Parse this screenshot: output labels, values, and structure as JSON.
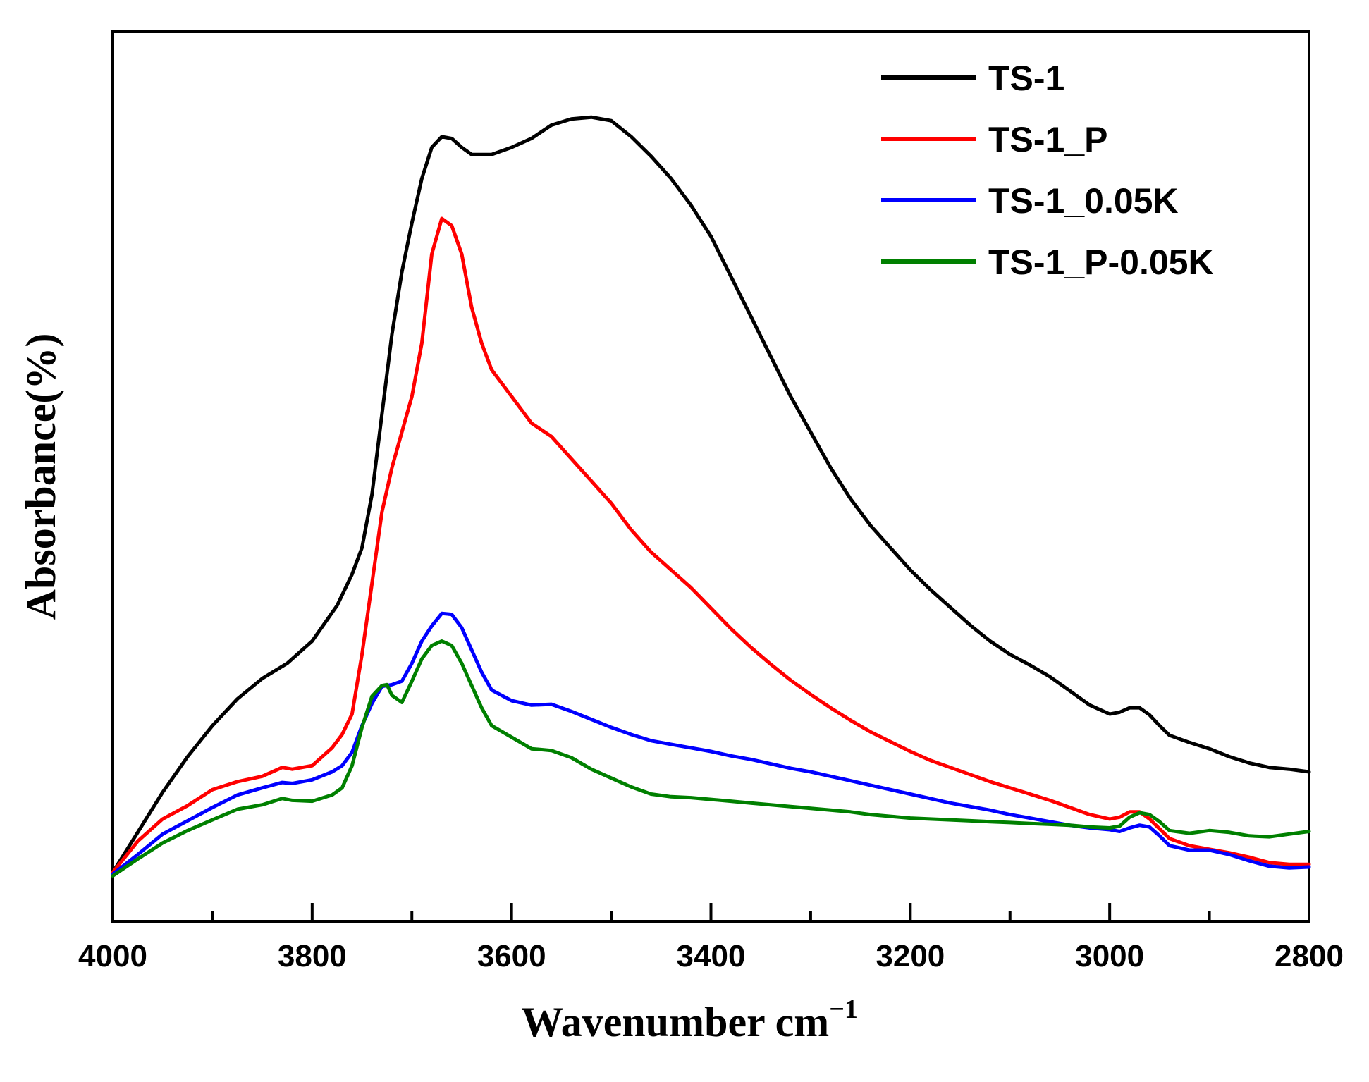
{
  "chart_data": {
    "type": "line",
    "title": "",
    "xlabel": "Wavenumber cm",
    "xlabel_superscript": "−1",
    "ylabel": "Absorbance(%)",
    "xlim": [
      4000,
      2800
    ],
    "ylim": [
      0,
      100
    ],
    "x_reversed": true,
    "xticks": [
      4000,
      3800,
      3600,
      3400,
      3200,
      3000,
      2800
    ],
    "y_ticks_shown": false,
    "grid": false,
    "legend_position": "top-right",
    "series": [
      {
        "name": "TS-1",
        "color": "#000000",
        "points": [
          [
            4000,
            5.5
          ],
          [
            3975,
            10
          ],
          [
            3950,
            14.5
          ],
          [
            3925,
            18.5
          ],
          [
            3900,
            22
          ],
          [
            3875,
            25
          ],
          [
            3850,
            27.3
          ],
          [
            3825,
            29
          ],
          [
            3800,
            31.5
          ],
          [
            3775,
            35.5
          ],
          [
            3760,
            39
          ],
          [
            3750,
            42
          ],
          [
            3740,
            48
          ],
          [
            3730,
            57
          ],
          [
            3720,
            66
          ],
          [
            3710,
            73
          ],
          [
            3700,
            78.5
          ],
          [
            3690,
            83.5
          ],
          [
            3680,
            87
          ],
          [
            3670,
            88.2
          ],
          [
            3660,
            88
          ],
          [
            3650,
            87
          ],
          [
            3640,
            86.2
          ],
          [
            3620,
            86.2
          ],
          [
            3600,
            87
          ],
          [
            3580,
            88
          ],
          [
            3560,
            89.5
          ],
          [
            3540,
            90.2
          ],
          [
            3520,
            90.4
          ],
          [
            3500,
            90
          ],
          [
            3480,
            88.2
          ],
          [
            3460,
            86
          ],
          [
            3440,
            83.5
          ],
          [
            3420,
            80.5
          ],
          [
            3400,
            77
          ],
          [
            3380,
            72.5
          ],
          [
            3360,
            68
          ],
          [
            3340,
            63.5
          ],
          [
            3320,
            59
          ],
          [
            3300,
            55
          ],
          [
            3280,
            51
          ],
          [
            3260,
            47.5
          ],
          [
            3240,
            44.5
          ],
          [
            3220,
            42
          ],
          [
            3200,
            39.5
          ],
          [
            3180,
            37.3
          ],
          [
            3160,
            35.3
          ],
          [
            3140,
            33.3
          ],
          [
            3120,
            31.5
          ],
          [
            3100,
            30
          ],
          [
            3080,
            28.8
          ],
          [
            3060,
            27.5
          ],
          [
            3040,
            25.9
          ],
          [
            3020,
            24.3
          ],
          [
            3000,
            23.3
          ],
          [
            2990,
            23.5
          ],
          [
            2980,
            24
          ],
          [
            2970,
            24
          ],
          [
            2960,
            23.2
          ],
          [
            2950,
            22
          ],
          [
            2940,
            20.9
          ],
          [
            2920,
            20.1
          ],
          [
            2900,
            19.4
          ],
          [
            2880,
            18.5
          ],
          [
            2860,
            17.8
          ],
          [
            2840,
            17.3
          ],
          [
            2820,
            17.1
          ],
          [
            2800,
            16.8
          ]
        ]
      },
      {
        "name": "TS-1_P",
        "color": "#ff0000",
        "points": [
          [
            4000,
            5.5
          ],
          [
            3975,
            9
          ],
          [
            3950,
            11.5
          ],
          [
            3925,
            13
          ],
          [
            3900,
            14.8
          ],
          [
            3875,
            15.7
          ],
          [
            3850,
            16.3
          ],
          [
            3830,
            17.3
          ],
          [
            3820,
            17.1
          ],
          [
            3800,
            17.5
          ],
          [
            3780,
            19.5
          ],
          [
            3770,
            21
          ],
          [
            3760,
            23.3
          ],
          [
            3750,
            30
          ],
          [
            3740,
            38
          ],
          [
            3730,
            46
          ],
          [
            3720,
            51
          ],
          [
            3710,
            55
          ],
          [
            3700,
            59
          ],
          [
            3690,
            65
          ],
          [
            3680,
            75
          ],
          [
            3670,
            79
          ],
          [
            3660,
            78.2
          ],
          [
            3650,
            75
          ],
          [
            3640,
            69
          ],
          [
            3630,
            65
          ],
          [
            3620,
            62
          ],
          [
            3600,
            59
          ],
          [
            3580,
            56
          ],
          [
            3560,
            54.5
          ],
          [
            3540,
            52
          ],
          [
            3520,
            49.5
          ],
          [
            3500,
            47
          ],
          [
            3480,
            44
          ],
          [
            3460,
            41.5
          ],
          [
            3440,
            39.5
          ],
          [
            3420,
            37.5
          ],
          [
            3400,
            35.2
          ],
          [
            3380,
            32.9
          ],
          [
            3360,
            30.8
          ],
          [
            3340,
            28.9
          ],
          [
            3320,
            27.1
          ],
          [
            3300,
            25.5
          ],
          [
            3280,
            24
          ],
          [
            3260,
            22.6
          ],
          [
            3240,
            21.3
          ],
          [
            3220,
            20.2
          ],
          [
            3200,
            19.1
          ],
          [
            3180,
            18.1
          ],
          [
            3160,
            17.3
          ],
          [
            3140,
            16.5
          ],
          [
            3120,
            15.7
          ],
          [
            3100,
            15
          ],
          [
            3080,
            14.3
          ],
          [
            3060,
            13.6
          ],
          [
            3040,
            12.8
          ],
          [
            3020,
            12
          ],
          [
            3000,
            11.5
          ],
          [
            2990,
            11.7
          ],
          [
            2980,
            12.3
          ],
          [
            2970,
            12.3
          ],
          [
            2960,
            11.5
          ],
          [
            2950,
            10.4
          ],
          [
            2940,
            9.3
          ],
          [
            2920,
            8.5
          ],
          [
            2900,
            8.1
          ],
          [
            2880,
            7.7
          ],
          [
            2860,
            7.2
          ],
          [
            2840,
            6.6
          ],
          [
            2820,
            6.4
          ],
          [
            2800,
            6.4
          ]
        ]
      },
      {
        "name": "TS-1_0.05K",
        "color": "#0000ff",
        "points": [
          [
            4000,
            5.3
          ],
          [
            3975,
            7.5
          ],
          [
            3950,
            9.8
          ],
          [
            3925,
            11.3
          ],
          [
            3900,
            12.8
          ],
          [
            3875,
            14.2
          ],
          [
            3850,
            15
          ],
          [
            3830,
            15.6
          ],
          [
            3820,
            15.5
          ],
          [
            3800,
            15.9
          ],
          [
            3780,
            16.8
          ],
          [
            3770,
            17.5
          ],
          [
            3760,
            19
          ],
          [
            3750,
            22
          ],
          [
            3740,
            24.5
          ],
          [
            3730,
            26.4
          ],
          [
            3720,
            26.6
          ],
          [
            3710,
            27
          ],
          [
            3700,
            29
          ],
          [
            3690,
            31.5
          ],
          [
            3680,
            33.2
          ],
          [
            3670,
            34.6
          ],
          [
            3660,
            34.5
          ],
          [
            3650,
            33
          ],
          [
            3640,
            30.5
          ],
          [
            3630,
            28
          ],
          [
            3620,
            26
          ],
          [
            3600,
            24.8
          ],
          [
            3580,
            24.3
          ],
          [
            3560,
            24.4
          ],
          [
            3540,
            23.6
          ],
          [
            3520,
            22.7
          ],
          [
            3500,
            21.8
          ],
          [
            3480,
            21
          ],
          [
            3460,
            20.3
          ],
          [
            3440,
            19.9
          ],
          [
            3420,
            19.5
          ],
          [
            3400,
            19.1
          ],
          [
            3380,
            18.6
          ],
          [
            3360,
            18.2
          ],
          [
            3340,
            17.7
          ],
          [
            3320,
            17.2
          ],
          [
            3300,
            16.8
          ],
          [
            3280,
            16.3
          ],
          [
            3260,
            15.8
          ],
          [
            3240,
            15.3
          ],
          [
            3220,
            14.8
          ],
          [
            3200,
            14.3
          ],
          [
            3180,
            13.8
          ],
          [
            3160,
            13.3
          ],
          [
            3140,
            12.9
          ],
          [
            3120,
            12.5
          ],
          [
            3100,
            12
          ],
          [
            3080,
            11.6
          ],
          [
            3060,
            11.2
          ],
          [
            3040,
            10.8
          ],
          [
            3020,
            10.5
          ],
          [
            3000,
            10.3
          ],
          [
            2990,
            10.1
          ],
          [
            2980,
            10.5
          ],
          [
            2970,
            10.8
          ],
          [
            2960,
            10.6
          ],
          [
            2950,
            9.6
          ],
          [
            2940,
            8.5
          ],
          [
            2920,
            8
          ],
          [
            2900,
            8
          ],
          [
            2880,
            7.5
          ],
          [
            2860,
            6.8
          ],
          [
            2840,
            6.2
          ],
          [
            2820,
            6
          ],
          [
            2800,
            6.1
          ]
        ]
      },
      {
        "name": "TS-1_P-0.05K",
        "color": "#008000",
        "points": [
          [
            4000,
            5.1
          ],
          [
            3975,
            7
          ],
          [
            3950,
            8.8
          ],
          [
            3925,
            10.2
          ],
          [
            3900,
            11.4
          ],
          [
            3875,
            12.6
          ],
          [
            3850,
            13.1
          ],
          [
            3830,
            13.8
          ],
          [
            3820,
            13.6
          ],
          [
            3800,
            13.5
          ],
          [
            3780,
            14.2
          ],
          [
            3770,
            15
          ],
          [
            3760,
            17.5
          ],
          [
            3750,
            21.8
          ],
          [
            3740,
            25.3
          ],
          [
            3730,
            26.5
          ],
          [
            3725,
            26.6
          ],
          [
            3720,
            25.4
          ],
          [
            3710,
            24.6
          ],
          [
            3700,
            27
          ],
          [
            3690,
            29.5
          ],
          [
            3680,
            31
          ],
          [
            3670,
            31.5
          ],
          [
            3660,
            31
          ],
          [
            3650,
            29
          ],
          [
            3640,
            26.5
          ],
          [
            3630,
            24
          ],
          [
            3620,
            22
          ],
          [
            3600,
            20.7
          ],
          [
            3580,
            19.4
          ],
          [
            3560,
            19.2
          ],
          [
            3540,
            18.4
          ],
          [
            3520,
            17.1
          ],
          [
            3500,
            16.1
          ],
          [
            3480,
            15.1
          ],
          [
            3460,
            14.3
          ],
          [
            3440,
            14
          ],
          [
            3420,
            13.9
          ],
          [
            3400,
            13.7
          ],
          [
            3380,
            13.5
          ],
          [
            3360,
            13.3
          ],
          [
            3340,
            13.1
          ],
          [
            3320,
            12.9
          ],
          [
            3300,
            12.7
          ],
          [
            3280,
            12.5
          ],
          [
            3260,
            12.3
          ],
          [
            3240,
            12
          ],
          [
            3220,
            11.8
          ],
          [
            3200,
            11.6
          ],
          [
            3180,
            11.5
          ],
          [
            3160,
            11.4
          ],
          [
            3140,
            11.3
          ],
          [
            3120,
            11.2
          ],
          [
            3100,
            11.1
          ],
          [
            3080,
            11
          ],
          [
            3060,
            10.9
          ],
          [
            3040,
            10.8
          ],
          [
            3020,
            10.6
          ],
          [
            3000,
            10.5
          ],
          [
            2990,
            10.7
          ],
          [
            2980,
            11.7
          ],
          [
            2970,
            12.2
          ],
          [
            2960,
            12
          ],
          [
            2950,
            11.2
          ],
          [
            2940,
            10.2
          ],
          [
            2920,
            9.9
          ],
          [
            2900,
            10.2
          ],
          [
            2880,
            10
          ],
          [
            2860,
            9.6
          ],
          [
            2840,
            9.5
          ],
          [
            2820,
            9.8
          ],
          [
            2800,
            10.1
          ]
        ]
      }
    ]
  }
}
